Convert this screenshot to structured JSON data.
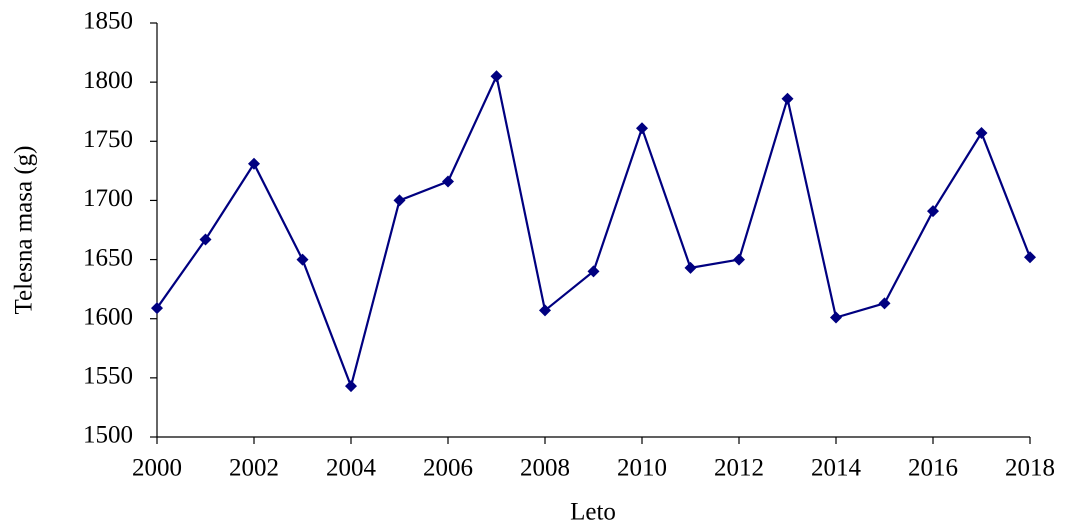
{
  "chart_data": {
    "type": "line",
    "x": [
      2000,
      2001,
      2002,
      2003,
      2004,
      2005,
      2006,
      2007,
      2008,
      2009,
      2010,
      2011,
      2012,
      2013,
      2014,
      2015,
      2016,
      2017,
      2018
    ],
    "series": [
      {
        "color": "#000080",
        "values": [
          1609,
          1667,
          1731,
          1650,
          1543,
          1700,
          1716,
          1805,
          1607,
          1640,
          1761,
          1643,
          1650,
          1786,
          1601,
          1613,
          1691,
          1757,
          1652
        ]
      }
    ],
    "xlabel": "Leto",
    "ylabel": "Telesna masa (g)",
    "xlim": [
      2000,
      2018
    ],
    "xticks": [
      2000,
      2002,
      2004,
      2006,
      2008,
      2010,
      2012,
      2014,
      2016,
      2018
    ],
    "ylim": [
      1500,
      1850
    ],
    "yticks": [
      1500,
      1550,
      1600,
      1650,
      1700,
      1750,
      1800,
      1850
    ],
    "grid": false,
    "marker": "diamond"
  }
}
